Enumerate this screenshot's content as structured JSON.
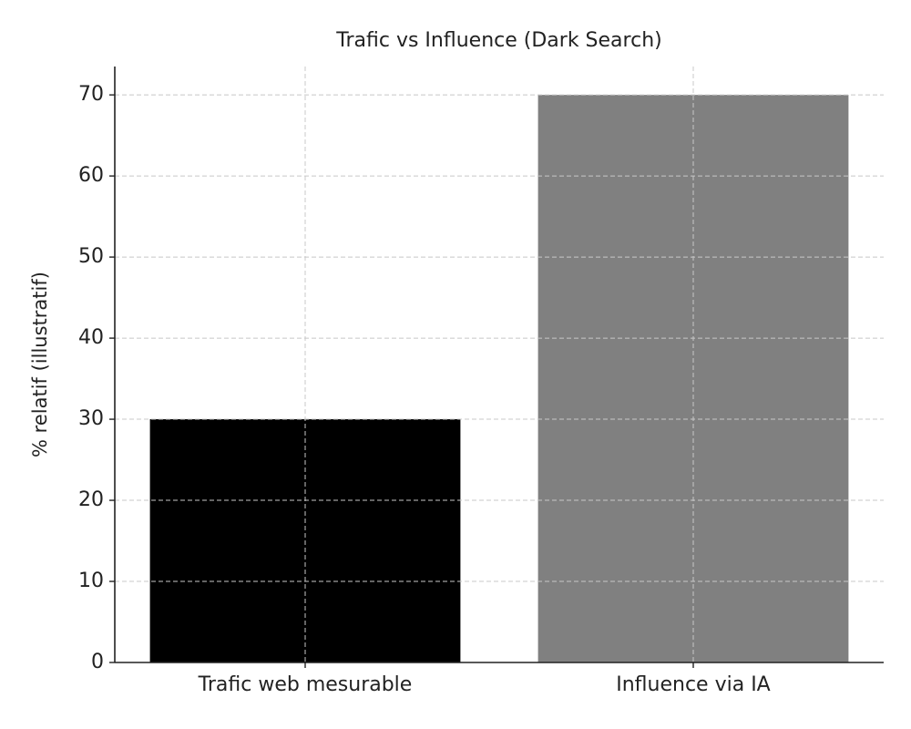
{
  "chart_data": {
    "type": "bar",
    "title": "Trafic vs Influence (Dark Search)",
    "y_label": "% relatif (illustratif)",
    "categories": [
      "Trafic web mesurable",
      "Influence via IA"
    ],
    "values": [
      30,
      70
    ],
    "colors": [
      "#000000",
      "#808080"
    ],
    "ylim": [
      0,
      73.5
    ],
    "yticks": [
      0,
      10,
      20,
      30,
      40,
      50,
      60,
      70
    ],
    "grid": true
  }
}
